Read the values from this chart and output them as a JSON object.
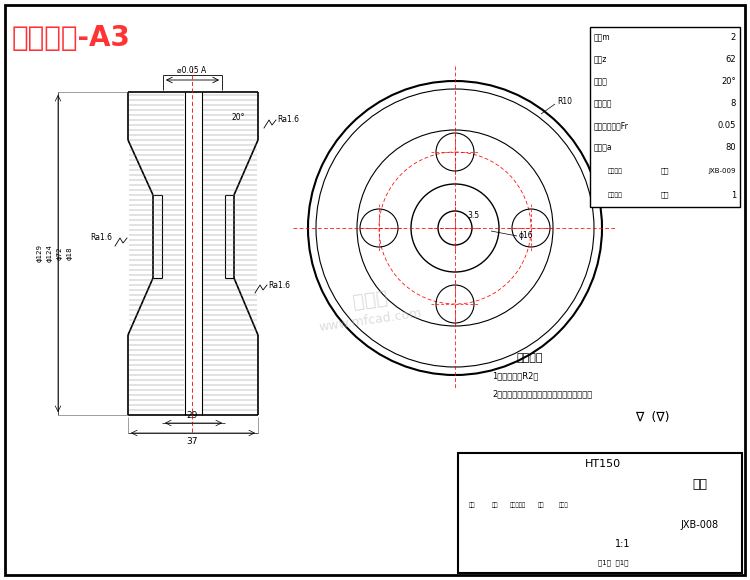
{
  "title": "肩部蜗轮-A3",
  "title_color": "#FF3333",
  "bg_color": "#FFFFFF",
  "lc": "#000000",
  "specs": [
    [
      "模数m",
      "2"
    ],
    [
      "齿数z",
      "62"
    ],
    [
      "压力角",
      "20°"
    ],
    [
      "精度等级",
      "8"
    ],
    [
      "齿圈径向跳动Fr",
      "0.05"
    ],
    [
      "中心距a",
      "80"
    ]
  ],
  "pair_gear": {
    "label": "配对蜗杆",
    "fig_label": "图号",
    "fig_val": "JXB-009",
    "head_label": "头数",
    "head_val": "1"
  },
  "tech_notes_title": "技术要求",
  "tech_notes": [
    "1、未注圆角R2。",
    "2、蜗缘和蜗芯装配好后再精车和切削齿缘。"
  ],
  "tb_material": "HT150",
  "tb_part": "蜗轮",
  "tb_scale": "1:1",
  "tb_no": "JXB-008",
  "watermark1": "沐风网",
  "watermark2": "www.mfcad.com",
  "tol_label": "⌀0.05 A",
  "angle_label": "20°",
  "ra_top": "Ra1.6",
  "ra_left": "Ra1.6",
  "ra_bot": "Ra1.6",
  "dim_37": "37",
  "dim_29": "29",
  "dim_phi129": "ϕ129",
  "dim_phi124": "ϕ124",
  "dim_phi72": "ϕ72",
  "dim_phi18": "ϕ18",
  "dim_R10": "R10",
  "dim_3_5": "3.5",
  "dim_phi16": "ϕ16"
}
